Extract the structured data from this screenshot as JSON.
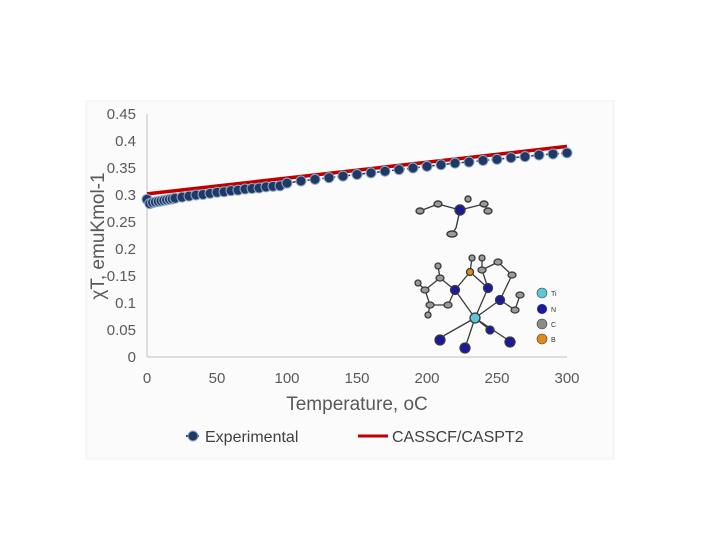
{
  "chart_data": {
    "type": "line",
    "xlabel": "Temperature, oC",
    "ylabel": "χT, emuKmol-1",
    "xlim": [
      0,
      300
    ],
    "ylim": [
      0,
      0.45
    ],
    "x_ticks": [
      "0",
      "50",
      "100",
      "150",
      "200",
      "250",
      "300"
    ],
    "y_ticks": [
      "0",
      "0.05",
      "0.1",
      "0.15",
      "0.2",
      "0.25",
      "0.3",
      "0.35",
      "0.4",
      "0.45"
    ],
    "grid": false,
    "legend_position": "bottom",
    "series": [
      {
        "name": "Experimental",
        "marker": "circle",
        "color": "#1f3864",
        "x": [
          0,
          2,
          4,
          6,
          8,
          10,
          12,
          14,
          16,
          18,
          20,
          25,
          30,
          35,
          40,
          45,
          50,
          55,
          60,
          65,
          70,
          75,
          80,
          85,
          90,
          95,
          100,
          110,
          120,
          130,
          140,
          150,
          160,
          170,
          180,
          190,
          200,
          210,
          220,
          230,
          240,
          250,
          260,
          270,
          280,
          290,
          300
        ],
        "y": [
          0.292,
          0.284,
          0.286,
          0.287,
          0.288,
          0.289,
          0.29,
          0.291,
          0.292,
          0.293,
          0.294,
          0.296,
          0.298,
          0.3,
          0.301,
          0.303,
          0.305,
          0.306,
          0.308,
          0.309,
          0.311,
          0.312,
          0.313,
          0.315,
          0.316,
          0.317,
          0.322,
          0.326,
          0.329,
          0.332,
          0.335,
          0.338,
          0.341,
          0.344,
          0.347,
          0.35,
          0.353,
          0.356,
          0.359,
          0.361,
          0.364,
          0.366,
          0.369,
          0.371,
          0.374,
          0.376,
          0.378
        ]
      },
      {
        "name": "CASSCF/CASPT2",
        "marker": "none",
        "color": "#c00000",
        "x": [
          0,
          300
        ],
        "y": [
          0.302,
          0.39
        ]
      }
    ],
    "inset": {
      "type": "molecular-structure",
      "legend": [
        "Ti",
        "N",
        "C",
        "B"
      ],
      "colors": [
        "#5bc8d6",
        "#1a1a9c",
        "#8c8c8c",
        "#e08a1e"
      ]
    }
  }
}
